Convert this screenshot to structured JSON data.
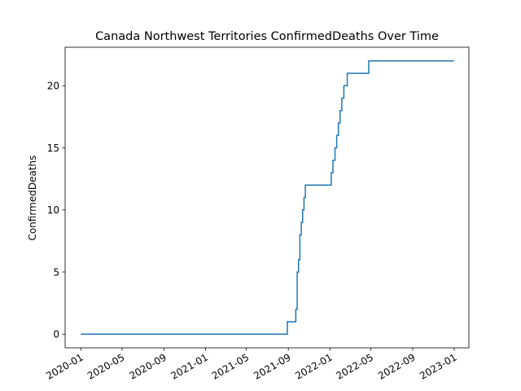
{
  "chart_data": {
    "type": "line",
    "title": "Canada Northwest Territories ConfirmedDeaths Over Time",
    "xlabel": "",
    "ylabel": "ConfirmedDeaths",
    "x_axis_type": "date",
    "xlim": [
      "2019-11-16",
      "2023-02-13"
    ],
    "ylim": [
      -1.1,
      23.1
    ],
    "grid": false,
    "legend": "none",
    "line_color": "#1f77b4",
    "x_ticks": [
      "2020-01",
      "2020-05",
      "2020-09",
      "2021-01",
      "2021-05",
      "2021-09",
      "2022-01",
      "2022-05",
      "2022-09",
      "2023-01"
    ],
    "y_ticks": [
      0,
      5,
      10,
      15,
      20
    ],
    "series": [
      {
        "step": "post",
        "x": [
          "2020-01-01",
          "2021-08-29",
          "2021-09-23",
          "2021-09-27",
          "2021-10-01",
          "2021-10-05",
          "2021-10-09",
          "2021-10-13",
          "2021-10-17",
          "2021-10-21",
          "2021-10-25",
          "2021-10-29",
          "2022-01-05",
          "2022-01-10",
          "2022-01-16",
          "2022-01-21",
          "2022-01-26",
          "2022-01-31",
          "2022-02-05",
          "2022-02-11",
          "2022-02-21",
          "2022-02-27",
          "2022-04-25",
          "2022-12-31"
        ],
        "y": [
          0,
          1,
          2,
          5,
          6,
          8,
          9,
          10,
          11,
          12,
          12,
          12,
          13,
          14,
          15,
          16,
          17,
          18,
          19,
          20,
          21,
          21,
          22,
          22
        ]
      }
    ]
  }
}
